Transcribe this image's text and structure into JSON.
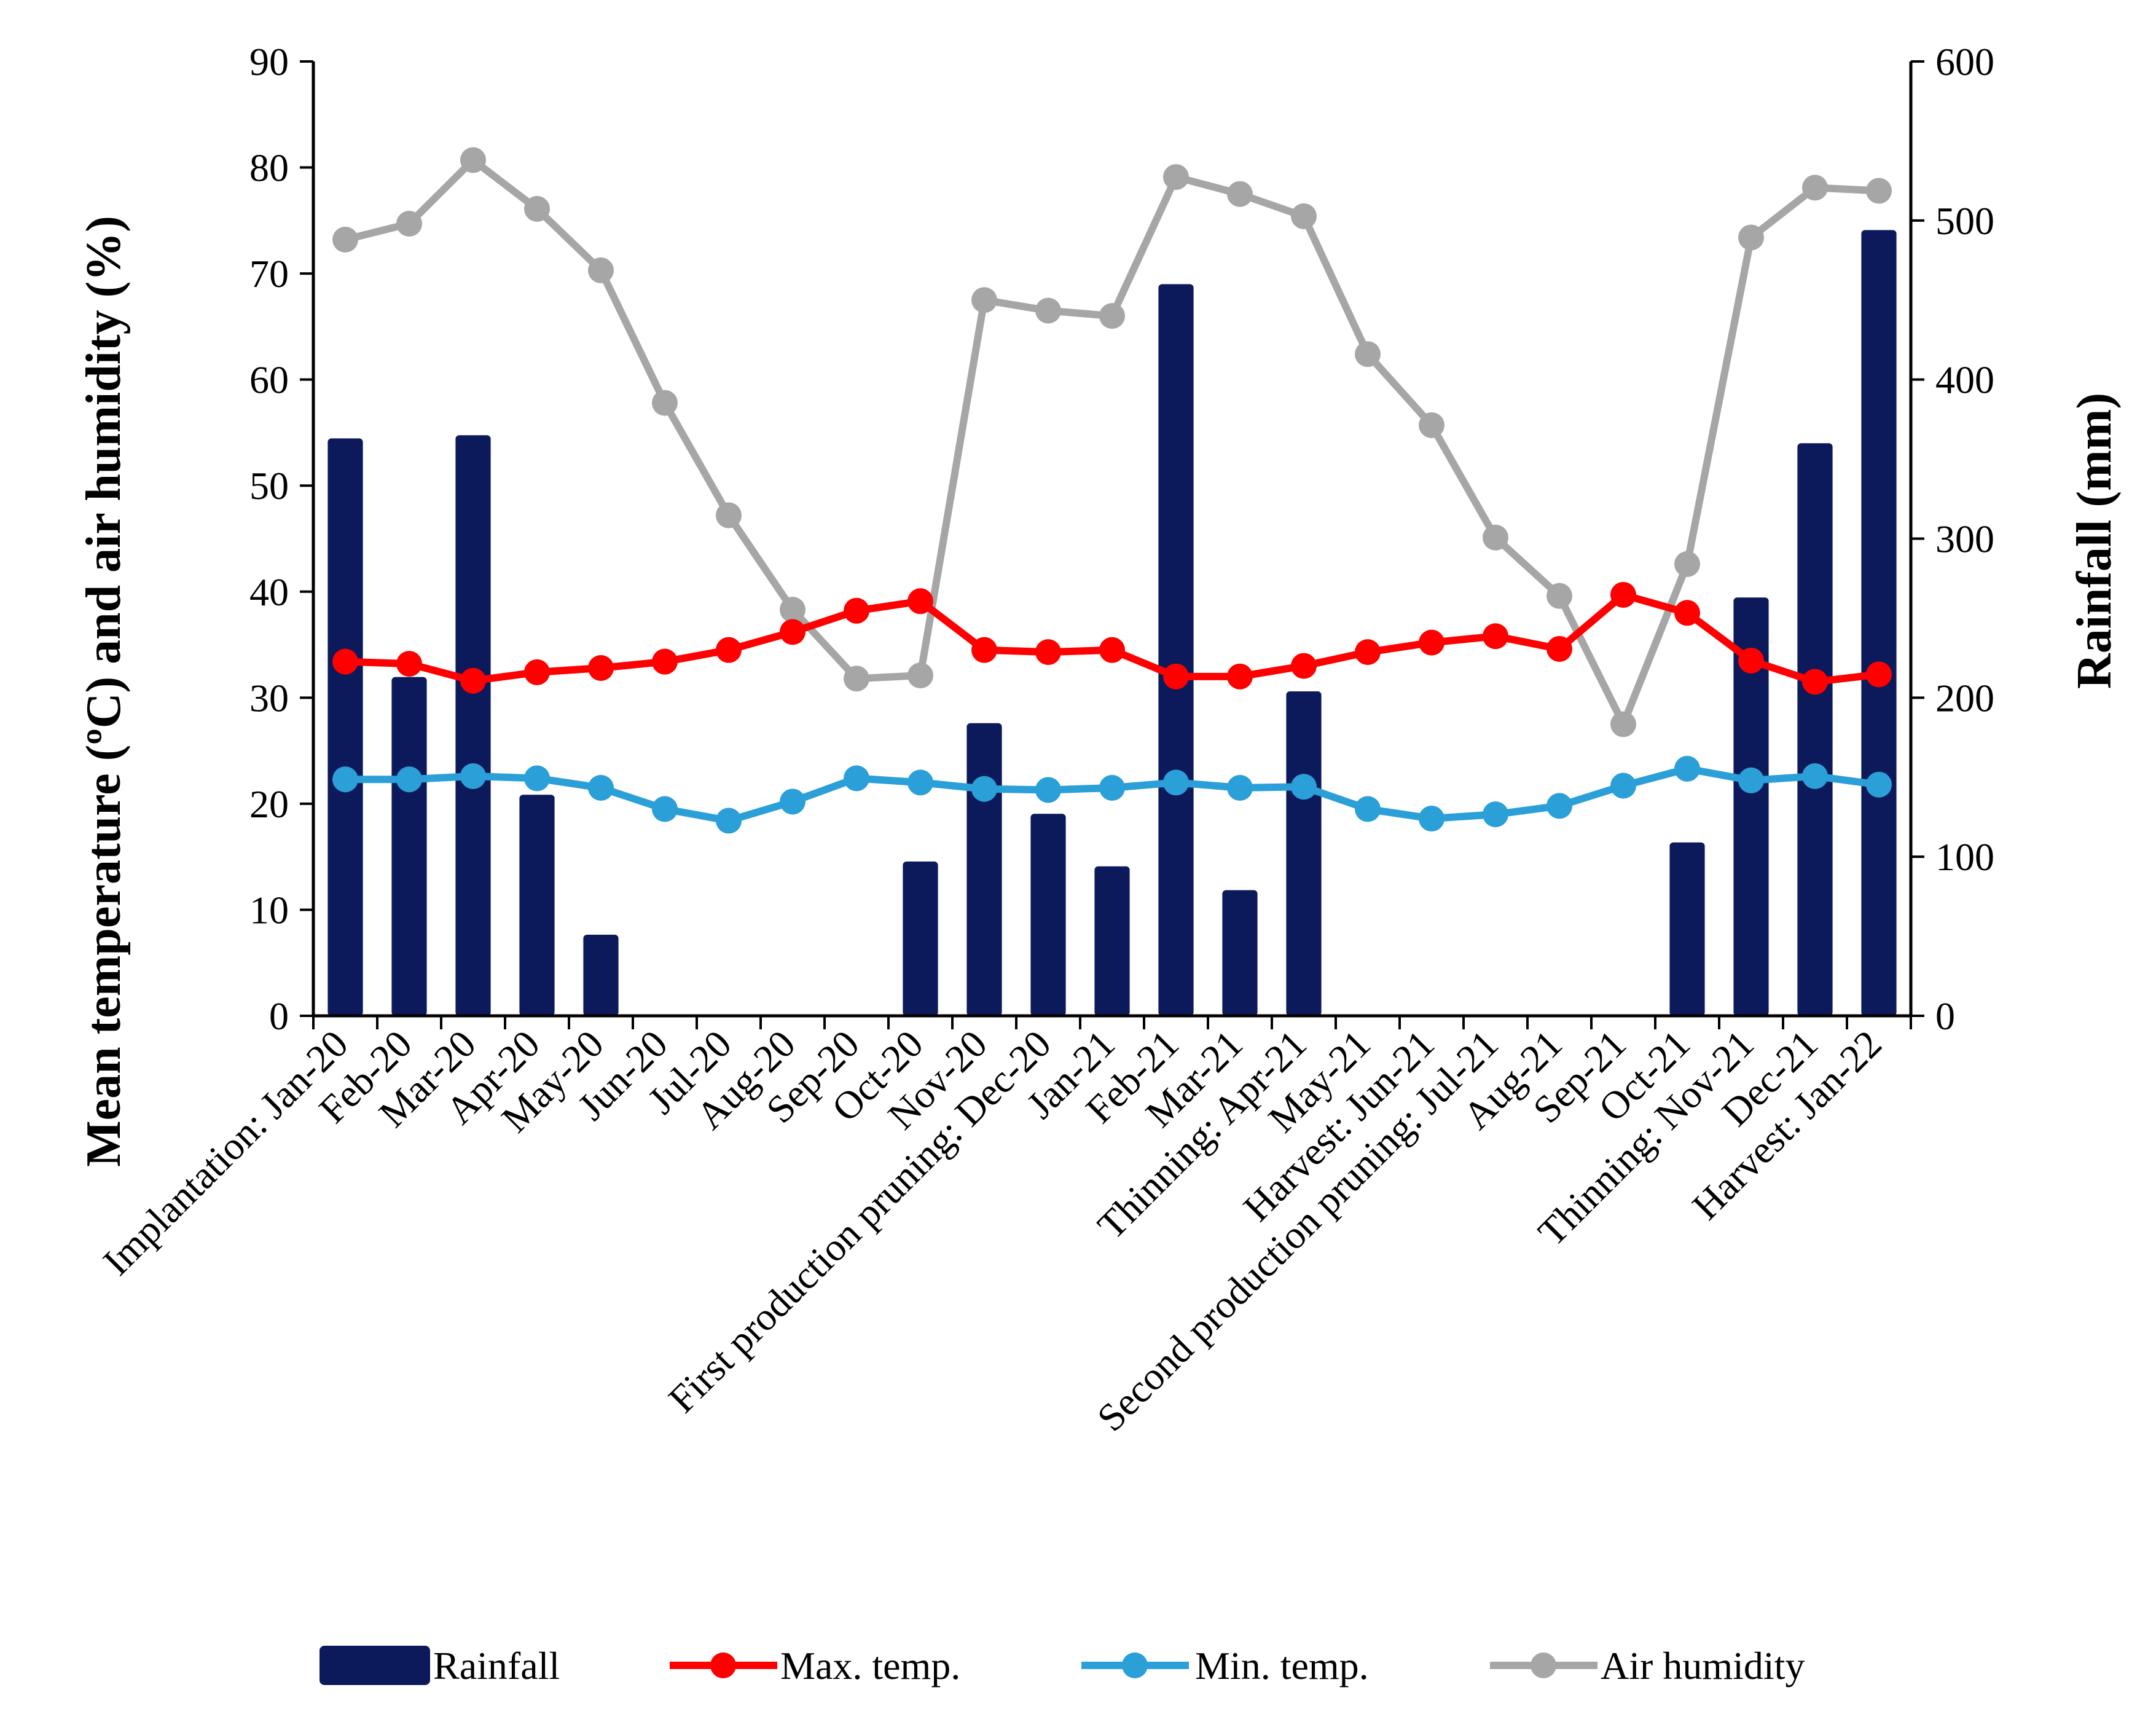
{
  "chart_data": {
    "type": "bar+line",
    "categories": [
      "Implantation: Jan-20",
      "Feb-20",
      "Mar-20",
      "Apr-20",
      "May-20",
      "Jun-20",
      "Jul-20",
      "Aug-20",
      "Sep-20",
      "Oct-20",
      "Nov-20",
      "First production pruning: Dec-20",
      "Jan-21",
      "Feb-21",
      "Mar-21",
      "Thinning: Apr-21",
      "May-21",
      "Harvest: Jun-21",
      "Second production pruning: Jul-21",
      "Aug-21",
      "Sep-21",
      "Oct-21",
      "Thinning: Nov-21",
      "Dec-21",
      "Harvest: Jan-22"
    ],
    "series": [
      {
        "name": "Rainfall",
        "kind": "bar",
        "axis": "right",
        "color": "#0c1a5b",
        "values": [
          363,
          213,
          365,
          139,
          51,
          0,
          0,
          0,
          0,
          97,
          184,
          127,
          94,
          460,
          79,
          204,
          0,
          0,
          0,
          0,
          0,
          109,
          263,
          360,
          494
        ]
      },
      {
        "name": "Max. temp.",
        "kind": "line",
        "axis": "left",
        "color": "#ff0000",
        "values": [
          33.4,
          33.2,
          31.6,
          32.4,
          32.8,
          33.4,
          34.5,
          36.2,
          38.2,
          39.1,
          34.5,
          34.3,
          34.5,
          32.0,
          32.0,
          33.0,
          34.3,
          35.2,
          35.8,
          34.6,
          39.7,
          38.0,
          33.5,
          31.5,
          32.2
        ]
      },
      {
        "name": "Min. temp.",
        "kind": "line",
        "axis": "left",
        "color": "#2a9fd8",
        "values": [
          22.3,
          22.3,
          22.6,
          22.4,
          21.5,
          19.5,
          18.4,
          20.2,
          22.4,
          22.0,
          21.4,
          21.3,
          21.5,
          22.0,
          21.5,
          21.6,
          19.5,
          18.6,
          19.0,
          19.8,
          21.7,
          23.3,
          22.2,
          22.6,
          21.8
        ]
      },
      {
        "name": "Air humidity",
        "kind": "line",
        "axis": "left",
        "color": "#a6a6a6",
        "values": [
          73.2,
          74.7,
          80.7,
          76.1,
          70.3,
          57.8,
          47.2,
          38.3,
          31.8,
          32.1,
          67.5,
          66.5,
          66.0,
          79.1,
          77.5,
          75.4,
          62.4,
          55.7,
          45.1,
          39.6,
          27.5,
          42.6,
          73.4,
          78.1,
          77.8
        ]
      }
    ],
    "y_left": {
      "title": "Mean temperature (ºC) and air humidity (%)",
      "min": 0,
      "max": 90,
      "step": 10
    },
    "y_right": {
      "title": "Rainfall (mm)",
      "min": 0,
      "max": 600,
      "step": 100
    },
    "legend": {
      "placement": "bottom",
      "labels": [
        "Rainfall",
        "Max. temp.",
        "Min. temp.",
        "Air humidity"
      ]
    },
    "grid": false
  }
}
